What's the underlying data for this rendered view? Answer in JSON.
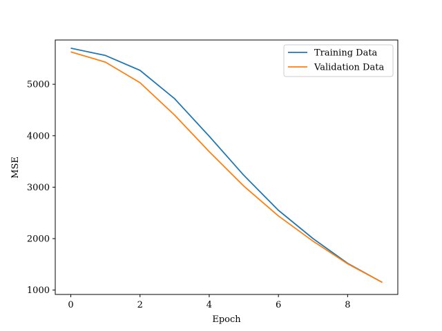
{
  "chart_data": {
    "type": "line",
    "title": "",
    "xlabel": "Epoch",
    "ylabel": "MSE",
    "xlim": [
      -0.45,
      9.45
    ],
    "ylim": [
      915,
      5860
    ],
    "x_ticks": [
      0,
      2,
      4,
      6,
      8
    ],
    "y_ticks": [
      1000,
      2000,
      3000,
      4000,
      5000
    ],
    "grid": false,
    "legend_position": "top-right",
    "x": [
      0,
      1,
      2,
      3,
      4,
      5,
      6,
      7,
      8,
      9
    ],
    "series": [
      {
        "name": "Training Data",
        "color": "#1f77b4",
        "values": [
          5700,
          5560,
          5270,
          4720,
          3990,
          3230,
          2550,
          2000,
          1520,
          1150
        ]
      },
      {
        "name": "Validation Data",
        "color": "#ff7f0e",
        "values": [
          5630,
          5430,
          5030,
          4400,
          3690,
          3020,
          2440,
          1950,
          1510,
          1150
        ]
      }
    ]
  }
}
